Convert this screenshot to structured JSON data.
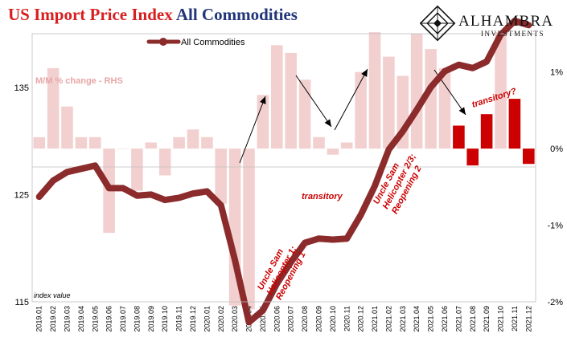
{
  "title_part1": "US Import Price Index",
  "title_part2": "All Commodities",
  "logo": {
    "name": "ALHAMBRA",
    "tagline": "INVESTMENTS"
  },
  "colors": {
    "line": "#8b2b2b",
    "bar_pale": "#f3d0d0",
    "bar_dark": "#cc0000",
    "annotation": "#cc0000",
    "title_red": "#d81e1e",
    "title_blue": "#22357a"
  },
  "chart_data": {
    "type": "line+bar",
    "categories": [
      "2019.01",
      "2019.02",
      "2019.03",
      "2019.04",
      "2019.05",
      "2019.06",
      "2019.07",
      "2019.08",
      "2019.09",
      "2019.10",
      "2019.11",
      "2019.12",
      "2020.01",
      "2020.02",
      "2020.03",
      "2020.04",
      "2020.05",
      "2020.06",
      "2020.07",
      "2020.08",
      "2020.09",
      "2020.10",
      "2020.11",
      "2020.12",
      "2021.01",
      "2021.02",
      "2021.03",
      "2021.04",
      "2021.05",
      "2021.06",
      "2021.07",
      "2021.08",
      "2021.09",
      "2021.10",
      "2021.11",
      "2021.12"
    ],
    "line_series": {
      "name": "All Commodities",
      "axis": "left",
      "values": [
        124.8,
        126.3,
        127.1,
        127.4,
        127.7,
        125.6,
        125.6,
        124.9,
        125.0,
        124.5,
        124.7,
        125.1,
        125.3,
        124.0,
        118.9,
        113.1,
        114.2,
        116.7,
        118.7,
        120.5,
        120.9,
        120.8,
        120.9,
        123.1,
        125.8,
        129.2,
        130.9,
        132.9,
        135.0,
        136.5,
        137.1,
        136.8,
        137.4,
        139.9,
        141.2,
        140.8
      ]
    },
    "bar_series": {
      "name": "M/M % change - RHS",
      "axis": "right",
      "values": [
        0.15,
        1.05,
        0.55,
        0.15,
        0.15,
        -1.1,
        0.0,
        -0.55,
        0.08,
        -0.35,
        0.15,
        0.25,
        0.15,
        -0.72,
        -2.05,
        -2.1,
        0.7,
        1.35,
        1.25,
        0.9,
        0.15,
        -0.08,
        0.08,
        1.0,
        1.52,
        1.2,
        0.95,
        1.5,
        1.3,
        1.05,
        0.3,
        -0.22,
        0.45,
        1.52,
        0.65,
        -0.2
      ],
      "dark_from_category": "2021.07"
    },
    "left_axis": {
      "min": 115,
      "max": 140,
      "ticks": [
        115,
        125,
        135
      ]
    },
    "right_axis": {
      "min": -2,
      "max": 1.5,
      "ticks": [
        -2,
        -1,
        0,
        1
      ],
      "tick_labels": [
        "-2%",
        "-1%",
        "0%",
        "1%"
      ]
    },
    "legend": "top-left",
    "texts": {
      "rhs_label": "M/M % change - RHS",
      "index_label": "index value",
      "ann1": "Uncle Sam",
      "ann1b": "Helicopter 1;",
      "ann1c": "Reopening 1",
      "ann2": "transitory",
      "ann3": "Uncle Sam",
      "ann3b": "Helicopter 2/3;",
      "ann3c": "Reopening 2",
      "ann4": "transitory?"
    }
  }
}
